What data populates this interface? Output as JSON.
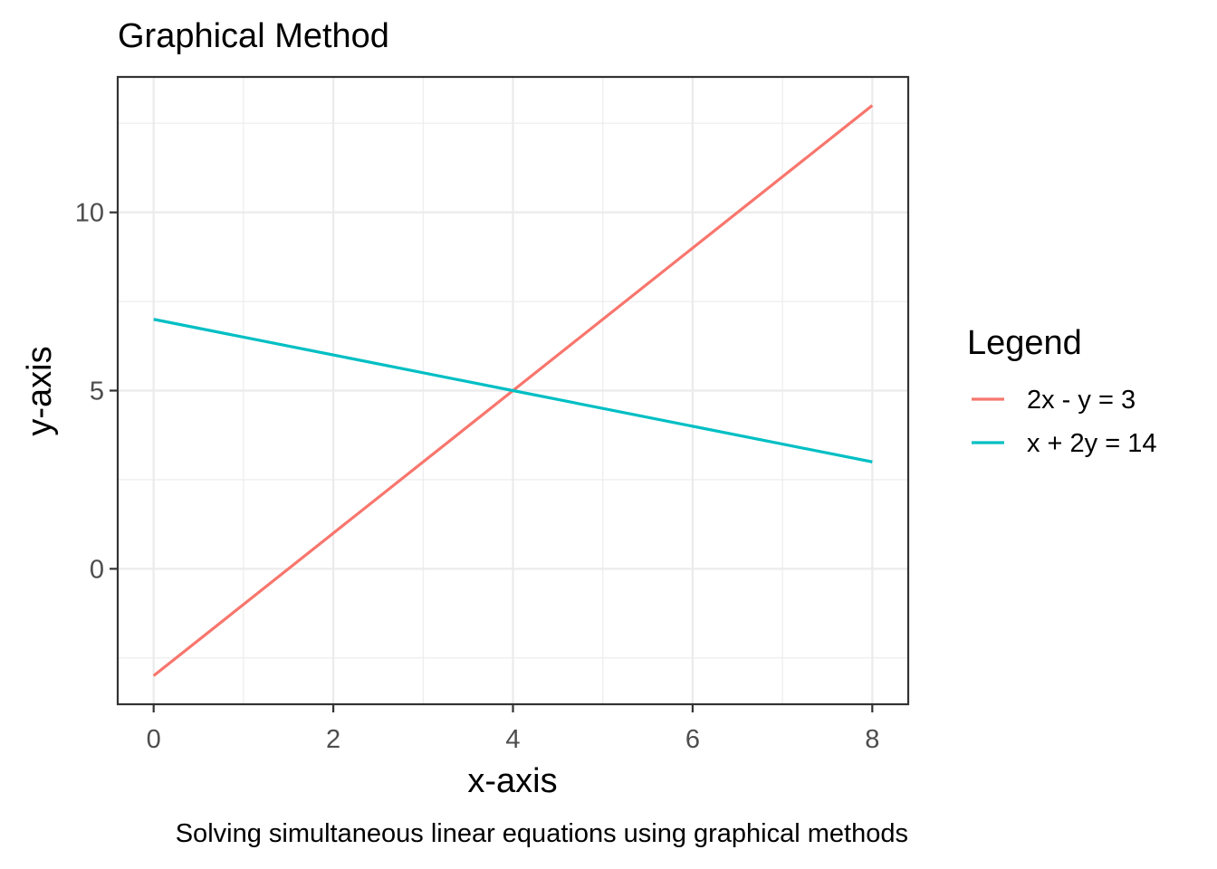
{
  "chart_data": {
    "type": "line",
    "title": "Graphical Method",
    "xlabel": "x-axis",
    "ylabel": "y-axis",
    "caption": "Solving simultaneous linear equations using graphical methods",
    "legend_title": "Legend",
    "legend_position": "right",
    "grid": true,
    "xlim": [
      -0.4,
      8.4
    ],
    "ylim": [
      -3.8,
      13.8
    ],
    "x_ticks": [
      0,
      2,
      4,
      6,
      8
    ],
    "x_tick_labels": [
      "0",
      "2",
      "4",
      "6",
      "8"
    ],
    "y_ticks": [
      0,
      5,
      10
    ],
    "y_tick_labels": [
      "0",
      "5",
      "10"
    ],
    "series": [
      {
        "name": "2x - y = 3",
        "color": "#F8766D",
        "x": [
          0,
          1,
          2,
          3,
          4,
          5,
          6,
          7,
          8
        ],
        "y": [
          -3,
          -1,
          1,
          3,
          5,
          7,
          9,
          11,
          13
        ]
      },
      {
        "name": "x + 2y = 14",
        "color": "#00BFC4",
        "x": [
          0,
          1,
          2,
          3,
          4,
          5,
          6,
          7,
          8
        ],
        "y": [
          7,
          6.5,
          6,
          5.5,
          5,
          4.5,
          4,
          3.5,
          3
        ]
      }
    ]
  }
}
